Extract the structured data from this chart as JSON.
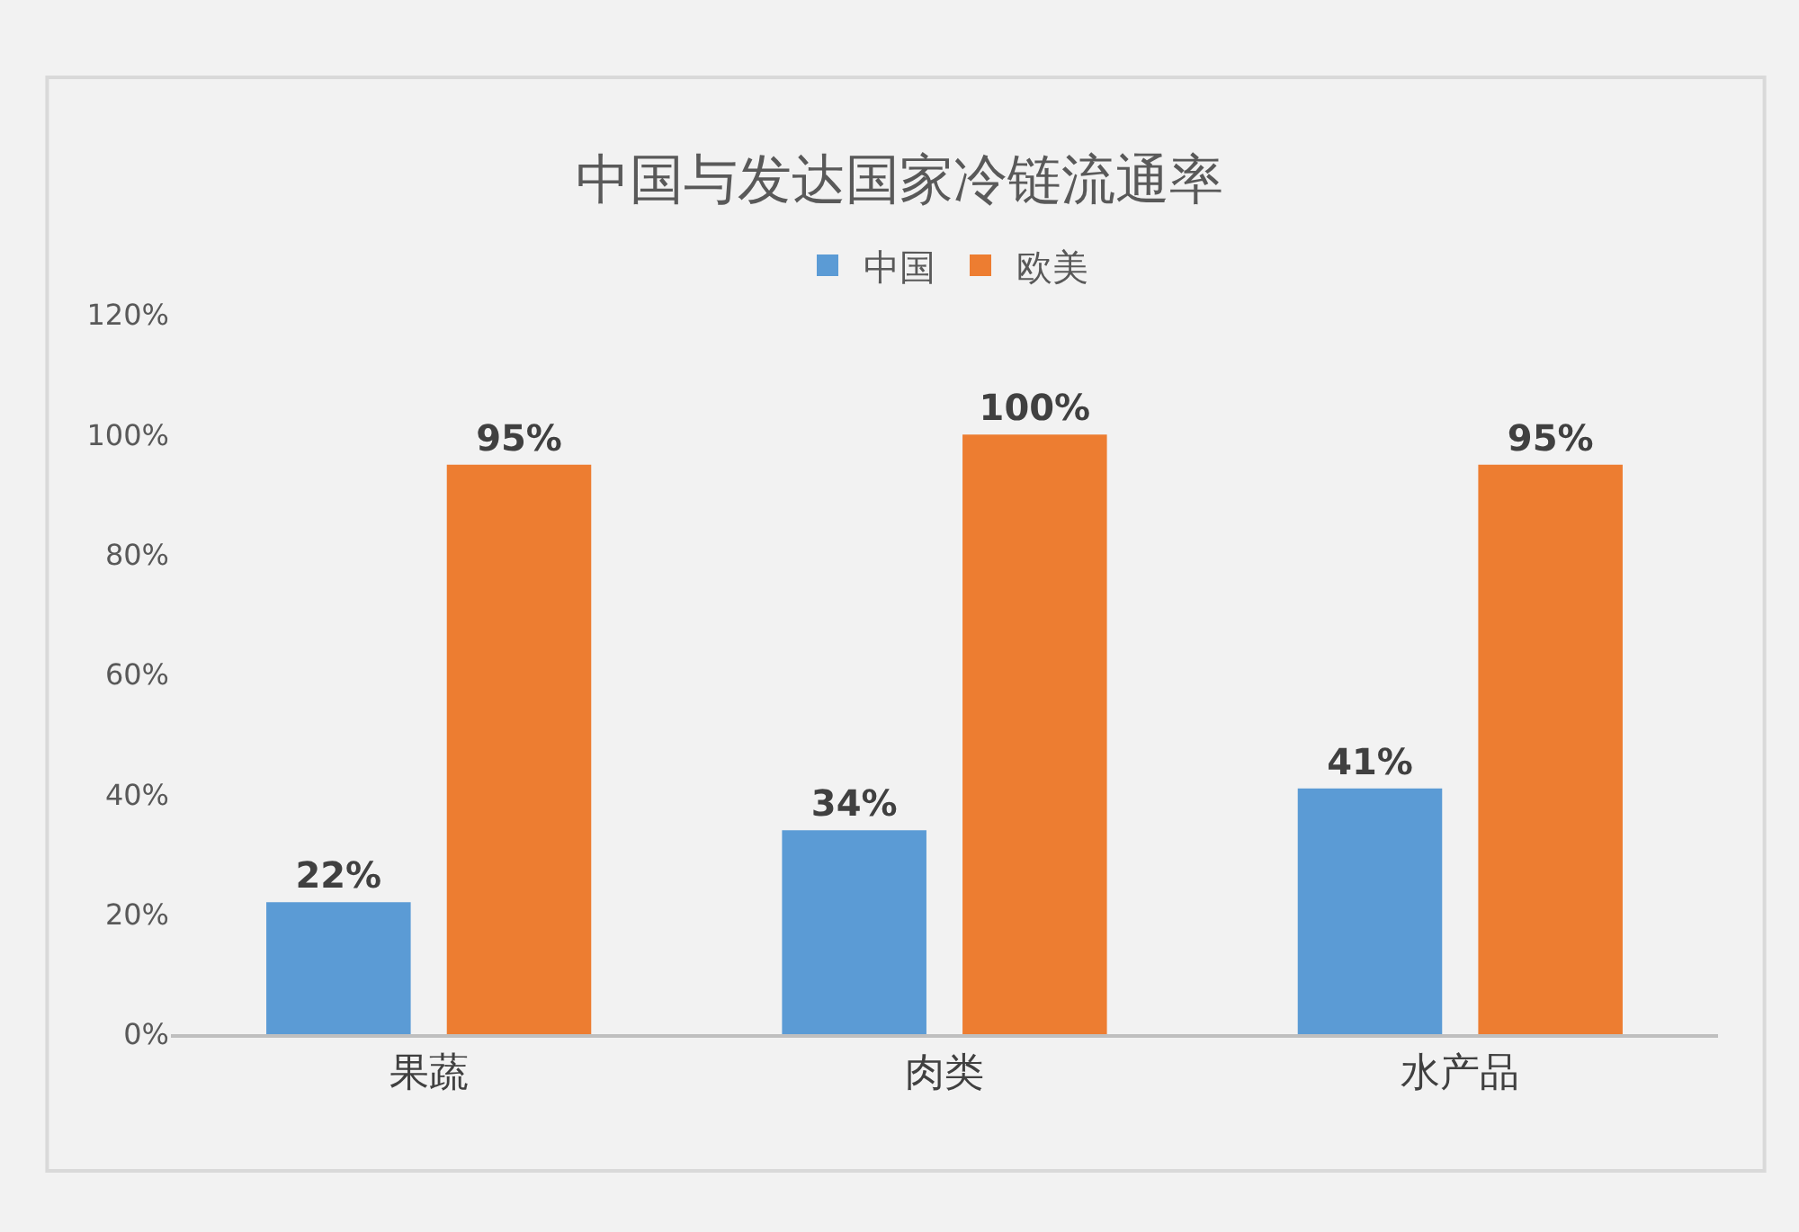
{
  "chart_data": {
    "type": "bar",
    "title": "中国与发达国家冷链流通率",
    "categories": [
      "果蔬",
      "肉类",
      "水产品"
    ],
    "series": [
      {
        "name": "中国",
        "color": "#5b9bd5",
        "values": [
          22,
          34,
          41
        ],
        "value_labels": [
          "22%",
          "34%",
          "41%"
        ]
      },
      {
        "name": "欧美",
        "color": "#ed7d31",
        "values": [
          95,
          100,
          95
        ],
        "value_labels": [
          "95%",
          "100%",
          "95%"
        ]
      }
    ],
    "ylim": [
      0,
      120
    ],
    "yticks": [
      {
        "value": 0,
        "label": "0%"
      },
      {
        "value": 20,
        "label": "20%"
      },
      {
        "value": 40,
        "label": "40%"
      },
      {
        "value": 60,
        "label": "60%"
      },
      {
        "value": 80,
        "label": "80%"
      },
      {
        "value": 100,
        "label": "100%"
      },
      {
        "value": 120,
        "label": "120%"
      }
    ],
    "grid": false,
    "legend": "top"
  }
}
